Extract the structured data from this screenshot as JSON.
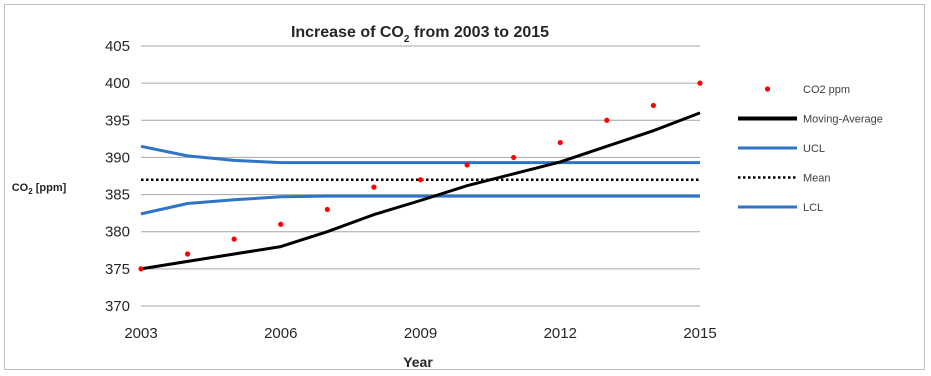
{
  "chart_data": {
    "type": "line",
    "title": {
      "prefix": "Increase of CO",
      "sub": "2",
      "suffix": " from 2003 to 2015"
    },
    "xlabel": "Year",
    "ylabel": {
      "prefix": "CO",
      "sub": "2",
      "suffix": " [ppm]"
    },
    "xlim": [
      2003,
      2015
    ],
    "ylim": [
      370,
      405
    ],
    "x_ticks": [
      "2003",
      "2006",
      "2009",
      "2012",
      "2015"
    ],
    "y_ticks": [
      "405",
      "400",
      "395",
      "390",
      "385",
      "380",
      "375",
      "370"
    ],
    "grid": "horizontal",
    "legend_position": "right",
    "x": [
      2003,
      2004,
      2005,
      2006,
      2007,
      2008,
      2009,
      2010,
      2011,
      2012,
      2013,
      2014,
      2015
    ],
    "series": [
      {
        "name": "CO2 ppm",
        "style": "points",
        "color": "#ff0000",
        "values": [
          375,
          377,
          379,
          381,
          383,
          386,
          387,
          389,
          390,
          392,
          395,
          397,
          400
        ]
      },
      {
        "name": "Moving-Average",
        "style": "line",
        "color": "#000000",
        "values": [
          375,
          376,
          377,
          378,
          380,
          382.3,
          384.2,
          386.2,
          387.8,
          389.4,
          391.5,
          393.6,
          396
        ]
      },
      {
        "name": "UCL",
        "style": "line",
        "color": "#2e75c8",
        "values": [
          391.5,
          390.2,
          389.6,
          389.3,
          389.3,
          389.3,
          389.3,
          389.3,
          389.3,
          389.3,
          389.3,
          389.3,
          389.3
        ]
      },
      {
        "name": "Mean",
        "style": "dotted",
        "color": "#000000",
        "values": [
          387,
          387,
          387,
          387,
          387,
          387,
          387,
          387,
          387,
          387,
          387,
          387,
          387
        ]
      },
      {
        "name": "LCL",
        "style": "line",
        "color": "#2e75c8",
        "values": [
          382.4,
          383.8,
          384.3,
          384.7,
          384.8,
          384.8,
          384.8,
          384.8,
          384.8,
          384.8,
          384.8,
          384.8,
          384.8
        ]
      }
    ]
  }
}
